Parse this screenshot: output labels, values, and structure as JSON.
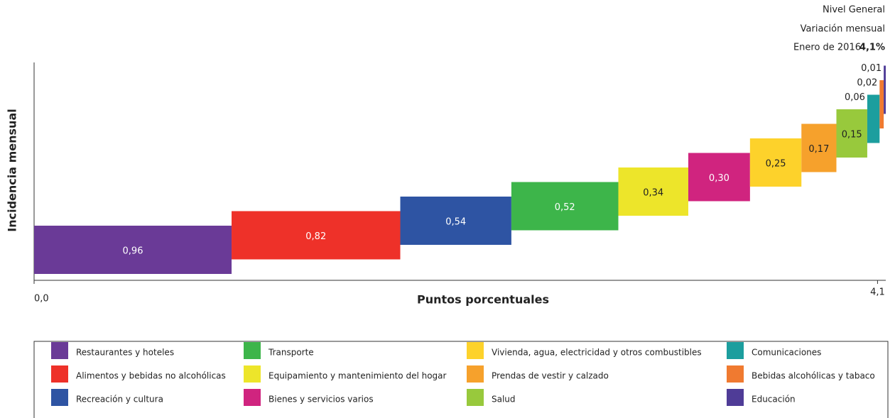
{
  "chart_data": {
    "type": "waterfall",
    "header": [
      "Nivel General",
      "Variación mensual",
      "Enero de 2016"
    ],
    "total_label": "4,1%",
    "y_axis_title": "Incidencia mensual",
    "x_axis_title": "Puntos porcentuales",
    "xlim": [
      0,
      4.14
    ],
    "xticks": [
      {
        "value": 0,
        "label": "0,0"
      },
      {
        "value": 4.1,
        "label": "4,1"
      }
    ],
    "categories": [
      "Restaurantes y hoteles",
      "Alimentos y bebidas no alcohólicas",
      "Recreación y cultura",
      "Transporte",
      "Equipamiento y mantenimiento del hogar",
      "Bienes y servicios varios",
      "Vivienda, agua, electricidad y otros combustibles",
      "Prendas de vestir y calzado",
      "Salud",
      "Comunicaciones",
      "Bebidas alcohólicas y tabaco",
      "Educación"
    ],
    "values": [
      0.96,
      0.82,
      0.54,
      0.52,
      0.34,
      0.3,
      0.25,
      0.17,
      0.15,
      0.06,
      0.02,
      0.01
    ],
    "value_labels": [
      "0,96",
      "0,82",
      "0,54",
      "0,52",
      "0,34",
      "0,30",
      "0,25",
      "0,17",
      "0,15",
      "0,06",
      "0,02",
      "0,01"
    ],
    "colors": [
      "#6a3a97",
      "#ee3129",
      "#2e54a3",
      "#3db54a",
      "#ede52a",
      "#d0247f",
      "#fdd22b",
      "#f6a12c",
      "#98c93c",
      "#1c9e9e",
      "#f07a30",
      "#4f3c97"
    ]
  }
}
